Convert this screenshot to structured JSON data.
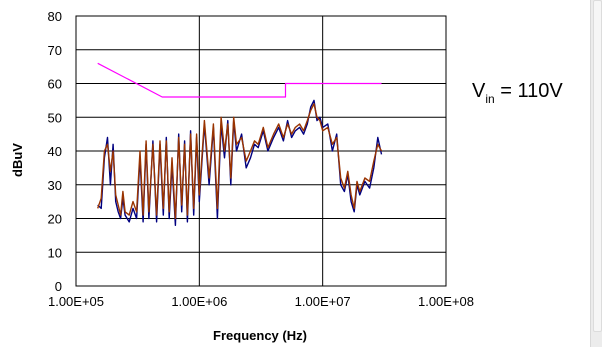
{
  "chart_data": {
    "type": "line",
    "xscale": "log",
    "xlim": [
      100000,
      100000000
    ],
    "ylim": [
      0,
      80
    ],
    "xticks": [
      100000,
      1000000,
      10000000,
      100000000
    ],
    "xtick_labels": [
      "1.00E+05",
      "1.00E+06",
      "1.00E+07",
      "1.00E+08"
    ],
    "yticks": [
      0,
      10,
      20,
      30,
      40,
      50,
      60,
      70,
      80
    ],
    "ytick_labels": [
      "0",
      "10",
      "20",
      "30",
      "40",
      "50",
      "60",
      "70",
      "80"
    ],
    "xlabel": "Frequency (Hz)",
    "ylabel": "dBuV",
    "grid": true,
    "legend": "none",
    "annotation": {
      "main": "V",
      "sub": "in",
      "rest": " = 110V"
    },
    "series": [
      {
        "color": "#ff00ff",
        "x": [
          150000,
          500000,
          500000,
          5000000,
          5000000,
          30000000
        ],
        "y": [
          66,
          56,
          56,
          56,
          60,
          60
        ]
      },
      {
        "color": "#000080",
        "x": [
          150000,
          160000,
          170000,
          180000,
          190000,
          200000,
          210000,
          220000,
          230000,
          240000,
          250000,
          270000,
          290000,
          310000,
          330000,
          350000,
          370000,
          390000,
          420000,
          450000,
          480000,
          510000,
          540000,
          570000,
          600000,
          640000,
          680000,
          720000,
          760000,
          800000,
          850000,
          900000,
          950000,
          1000000,
          1100000,
          1200000,
          1300000,
          1400000,
          1500000,
          1600000,
          1700000,
          1800000,
          1900000,
          2000000,
          2200000,
          2400000,
          2600000,
          2800000,
          3000000,
          3300000,
          3600000,
          4000000,
          4400000,
          4800000,
          5200000,
          5600000,
          6000000,
          6500000,
          7000000,
          7500000,
          8000000,
          8500000,
          9000000,
          9500000,
          10000000,
          11000000,
          12000000,
          13000000,
          14000000,
          15000000,
          16000000,
          17000000,
          18000000,
          19000000,
          20000000,
          22000000,
          24000000,
          26000000,
          28000000,
          30000000
        ],
        "y": [
          24,
          23,
          38,
          44,
          30,
          42,
          25,
          22,
          20,
          26,
          21,
          19,
          23,
          20,
          38,
          19,
          42,
          20,
          43,
          19,
          42,
          21,
          44,
          20,
          36,
          18,
          45,
          22,
          43,
          19,
          46,
          21,
          44,
          25,
          48,
          30,
          47,
          20,
          48,
          38,
          49,
          30,
          49,
          40,
          45,
          35,
          38,
          42,
          41,
          46,
          40,
          44,
          47,
          43,
          49,
          44,
          46,
          47,
          45,
          48,
          53,
          55,
          49,
          50,
          47,
          48,
          40,
          45,
          30,
          28,
          33,
          25,
          22,
          30,
          27,
          31,
          29,
          35,
          44,
          39
        ]
      },
      {
        "color": "#993300",
        "x": [
          150000,
          160000,
          170000,
          180000,
          190000,
          200000,
          210000,
          220000,
          230000,
          240000,
          250000,
          270000,
          290000,
          310000,
          330000,
          350000,
          370000,
          390000,
          420000,
          450000,
          480000,
          510000,
          540000,
          570000,
          600000,
          640000,
          680000,
          720000,
          760000,
          800000,
          850000,
          900000,
          950000,
          1000000,
          1100000,
          1200000,
          1300000,
          1400000,
          1500000,
          1600000,
          1700000,
          1800000,
          1900000,
          2000000,
          2200000,
          2400000,
          2600000,
          2800000,
          3000000,
          3300000,
          3600000,
          4000000,
          4400000,
          4800000,
          5200000,
          5600000,
          6000000,
          6500000,
          7000000,
          7500000,
          8000000,
          8500000,
          9000000,
          9500000,
          10000000,
          11000000,
          12000000,
          13000000,
          14000000,
          15000000,
          16000000,
          17000000,
          18000000,
          19000000,
          20000000,
          22000000,
          24000000,
          26000000,
          28000000,
          30000000
        ],
        "y": [
          23,
          26,
          40,
          42,
          34,
          40,
          27,
          24,
          21,
          28,
          22,
          21,
          25,
          22,
          40,
          21,
          43,
          22,
          42,
          21,
          43,
          23,
          43,
          22,
          38,
          20,
          44,
          24,
          42,
          21,
          45,
          23,
          45,
          27,
          49,
          32,
          48,
          23,
          50,
          40,
          48,
          32,
          50,
          42,
          44,
          37,
          40,
          43,
          42,
          47,
          41,
          45,
          48,
          44,
          48,
          45,
          47,
          48,
          46,
          49,
          52,
          54,
          50,
          49,
          46,
          47,
          42,
          44,
          32,
          29,
          34,
          27,
          23,
          31,
          28,
          32,
          31,
          37,
          42,
          40
        ]
      }
    ]
  }
}
